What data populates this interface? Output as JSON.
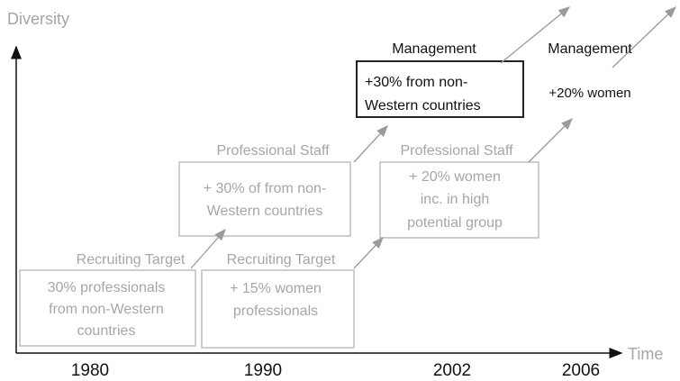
{
  "axes": {
    "y_label": "Diversity",
    "x_label": "Time",
    "years": [
      "1980",
      "1990",
      "2002",
      "2006"
    ]
  },
  "stages": [
    {
      "label": "Recruiting Target",
      "lines": [
        "30% professionals",
        "from non-Western",
        "countries"
      ]
    },
    {
      "label": "Recruiting Target",
      "lines": [
        "+ 15% women",
        "professionals"
      ]
    },
    {
      "label": "Professional Staff",
      "lines": [
        "+ 30% of from non-",
        "Western countries"
      ]
    },
    {
      "label": "Professional Staff",
      "lines": [
        "+ 20% women",
        "inc. in  high",
        "potential group"
      ]
    },
    {
      "label": "Management",
      "lines": [
        "+30% from non-",
        "Western countries"
      ]
    },
    {
      "label": "Management",
      "lines": [
        "+20% women"
      ]
    }
  ]
}
